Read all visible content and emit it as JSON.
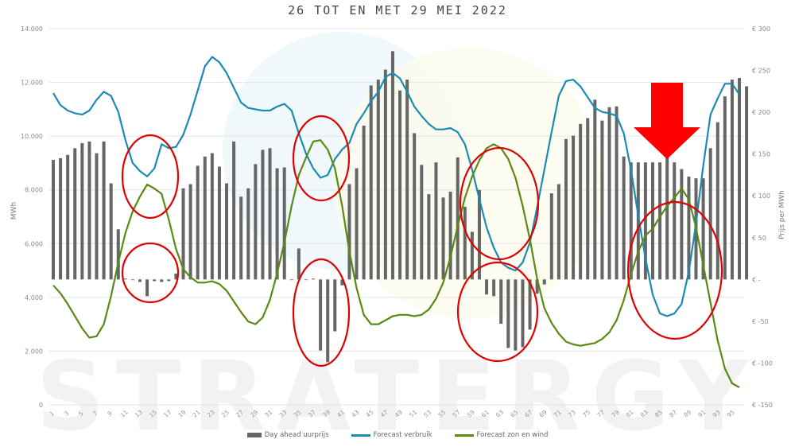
{
  "chart_data": {
    "type": "bar+line",
    "title": "26 TOT EN MET 29 MEI 2022",
    "xlabel": "",
    "ylabel_left": "MWh",
    "ylabel_right": "Prijs per MWh",
    "ylim_left": [
      0,
      14000
    ],
    "ylim_right": [
      -150,
      300
    ],
    "grid": true,
    "legend_position": "bottom",
    "y_ticks_left": [
      "0",
      "2.000",
      "4.000",
      "6.000",
      "8.000",
      "10.000",
      "12.000",
      "14.000"
    ],
    "y_ticks_right": [
      "€ -150",
      "€ -100",
      "€ -50",
      "€ -",
      "€ 50",
      "€ 100",
      "€ 150",
      "€ 200",
      "€ 250",
      "€ 300"
    ],
    "x_tick_labels": [
      "1",
      "3",
      "5",
      "7",
      "9",
      "11",
      "13",
      "15",
      "17",
      "19",
      "21",
      "23",
      "25",
      "27",
      "29",
      "31",
      "33",
      "35",
      "37",
      "39",
      "41",
      "43",
      "45",
      "47",
      "49",
      "51",
      "53",
      "55",
      "57",
      "59",
      "61",
      "63",
      "65",
      "67",
      "69",
      "71",
      "73",
      "75",
      "77",
      "79",
      "81",
      "83",
      "85",
      "87",
      "89",
      "91",
      "93",
      "95"
    ],
    "categories_count": 96,
    "series": [
      {
        "name": "Day ahead uurprijs",
        "type": "bar",
        "axis": "right",
        "color": "#666666",
        "values": [
          143,
          145,
          149,
          157,
          163,
          165,
          151,
          165,
          115,
          60,
          1,
          0,
          -3,
          -20,
          -2,
          -3,
          -2,
          7,
          109,
          114,
          136,
          147,
          151,
          135,
          115,
          165,
          99,
          109,
          138,
          155,
          157,
          133,
          134,
          0,
          37,
          0,
          1,
          -85,
          -99,
          -62,
          -7,
          114,
          133,
          184,
          232,
          239,
          251,
          273,
          226,
          239,
          175,
          137,
          102,
          140,
          98,
          105,
          146,
          87,
          57,
          107,
          -18,
          -20,
          -53,
          -82,
          -85,
          -81,
          -60,
          -17,
          -6,
          103,
          114,
          168,
          172,
          186,
          193,
          215,
          190,
          206,
          207,
          147,
          140,
          140,
          140,
          140,
          140,
          146,
          140,
          132,
          123,
          121,
          121,
          157,
          188,
          219,
          239,
          241,
          231
        ]
      },
      {
        "name": "Forecast verbruik",
        "type": "line",
        "axis": "left",
        "color": "#1a8cb3",
        "values": [
          11600,
          11150,
          10950,
          10850,
          10800,
          10950,
          11350,
          11650,
          11500,
          10900,
          9850,
          9000,
          8700,
          8500,
          8800,
          9700,
          9550,
          9600,
          10050,
          10800,
          11700,
          12600,
          12950,
          12750,
          12350,
          11800,
          11250,
          11050,
          11000,
          10950,
          10950,
          11100,
          11200,
          10950,
          10100,
          9350,
          8800,
          8450,
          8550,
          9150,
          9500,
          9750,
          10450,
          10850,
          11300,
          11650,
          12200,
          12350,
          12150,
          11650,
          11100,
          10750,
          10450,
          10250,
          10250,
          10300,
          10150,
          9700,
          8750,
          7650,
          6600,
          5850,
          5300,
          5100,
          5000,
          5300,
          6050,
          7350,
          8750,
          10150,
          11500,
          12050,
          12100,
          11850,
          11450,
          11050,
          10900,
          10850,
          10750,
          10100,
          8750,
          7050,
          5450,
          4100,
          3400,
          3300,
          3400,
          3750,
          4950,
          6750,
          8900,
          10800,
          11400,
          11950,
          11950,
          11550
        ]
      },
      {
        "name": "Forecast zon en wind",
        "type": "line",
        "axis": "left",
        "color": "#5a8a12",
        "values": [
          4450,
          4150,
          3750,
          3300,
          2850,
          2500,
          2550,
          3000,
          4050,
          5300,
          6400,
          7200,
          7750,
          8200,
          8050,
          7850,
          6900,
          5800,
          5050,
          4750,
          4550,
          4550,
          4600,
          4500,
          4250,
          3850,
          3450,
          3100,
          3000,
          3250,
          3900,
          4900,
          6050,
          7400,
          8550,
          9200,
          9800,
          9850,
          9500,
          8800,
          7400,
          5700,
          4350,
          3350,
          3000,
          3000,
          3150,
          3300,
          3350,
          3350,
          3300,
          3350,
          3550,
          3950,
          4550,
          5500,
          6650,
          7700,
          8500,
          9100,
          9550,
          9700,
          9550,
          9150,
          8450,
          7400,
          6150,
          4700,
          3600,
          3050,
          2650,
          2350,
          2250,
          2200,
          2250,
          2300,
          2450,
          2700,
          3150,
          3900,
          4850,
          5700,
          6300,
          6550,
          7000,
          7400,
          7700,
          8050,
          7650,
          6600,
          5200,
          3800,
          2400,
          1350,
          800,
          650
        ]
      }
    ],
    "annotations": [
      {
        "type": "ellipse",
        "color": "#e10000",
        "cx": 189,
        "cy": 222,
        "rx": 35,
        "ry": 52
      },
      {
        "type": "ellipse",
        "color": "#e10000",
        "cx": 189,
        "cy": 343,
        "rx": 35,
        "ry": 37
      },
      {
        "type": "ellipse",
        "color": "#e10000",
        "cx": 404,
        "cy": 199,
        "rx": 35,
        "ry": 53
      },
      {
        "type": "ellipse",
        "color": "#e10000",
        "cx": 404,
        "cy": 393,
        "rx": 35,
        "ry": 67
      },
      {
        "type": "ellipse",
        "color": "#e10000",
        "cx": 628,
        "cy": 256,
        "rx": 49,
        "ry": 70
      },
      {
        "type": "ellipse",
        "color": "#e10000",
        "cx": 626,
        "cy": 392,
        "rx": 50,
        "ry": 62
      },
      {
        "type": "ellipse",
        "color": "#e10000",
        "cx": 849,
        "cy": 340,
        "rx": 59,
        "ry": 86
      },
      {
        "type": "arrow-down",
        "color": "#ff0000",
        "x": 839,
        "y_top": 104,
        "y_tip": 200
      }
    ],
    "watermark": "STRATERGY"
  },
  "legend": {
    "items": [
      {
        "label": "Day ahead uurprijs",
        "color": "#666666",
        "kind": "bar"
      },
      {
        "label": "Forecast verbruik",
        "color": "#1a8cb3",
        "kind": "line"
      },
      {
        "label": "Forecast zon en wind",
        "color": "#5a8a12",
        "kind": "line"
      }
    ]
  }
}
